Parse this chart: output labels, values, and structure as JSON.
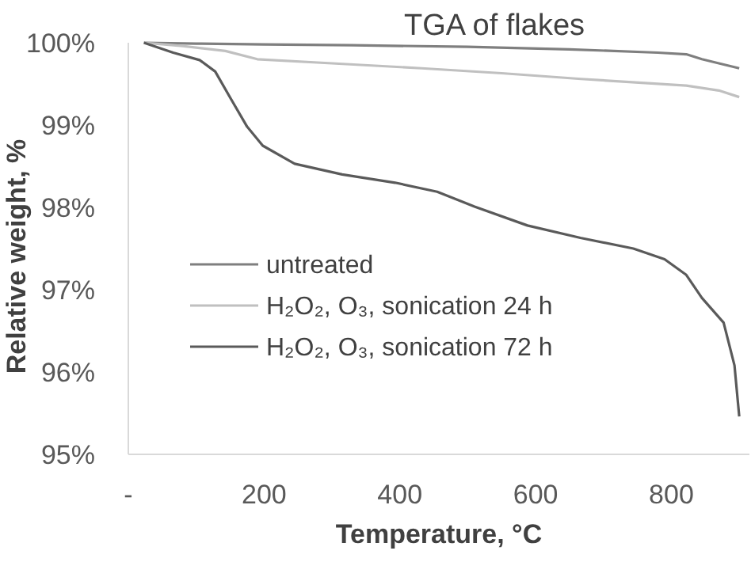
{
  "chart_data": {
    "type": "line",
    "title": "TGA of flakes",
    "xlabel": "Temperature, °C",
    "ylabel": "Relative weight, %",
    "xlim": [
      0,
      915
    ],
    "xticks": [
      {
        "value": 0,
        "label": "-"
      },
      200,
      400,
      600,
      800
    ],
    "ylim": [
      95,
      100
    ],
    "yticks": [
      {
        "value": 95,
        "label": "95%"
      },
      {
        "value": 96,
        "label": "96%"
      },
      {
        "value": 97,
        "label": "97%"
      },
      {
        "value": 98,
        "label": "98%"
      },
      {
        "value": 99,
        "label": "99%"
      },
      {
        "value": 100,
        "label": "100%"
      }
    ],
    "grid": false,
    "legend": "left",
    "marker": "none",
    "line_style": "solid",
    "series": [
      {
        "name": "untreated",
        "color": "#7f7f7f",
        "x": [
          23,
          100,
          200,
          330,
          500,
          650,
          780,
          822,
          845,
          870,
          900
        ],
        "values": [
          100,
          99.99,
          99.98,
          99.97,
          99.95,
          99.92,
          99.88,
          99.86,
          99.8,
          99.75,
          99.69
        ]
      },
      {
        "name": "H₂O₂, O₃, sonication 24 h",
        "color": "#c0c0c0",
        "x": [
          23,
          80,
          143,
          190,
          300,
          432,
          550,
          667,
          822,
          870,
          900
        ],
        "values": [
          100,
          99.96,
          99.9,
          99.8,
          99.75,
          99.69,
          99.63,
          99.56,
          99.48,
          99.42,
          99.34
        ]
      },
      {
        "name": "H₂O₂, O₃, sonication 72 h",
        "color": "#5a5a5a",
        "x": [
          23,
          66,
          105,
          128,
          151,
          175,
          198,
          245,
          315,
          393,
          455,
          510,
          588,
          666,
          744,
          790,
          822,
          845,
          877,
          893,
          900
        ],
        "values": [
          100,
          99.88,
          99.79,
          99.65,
          99.32,
          98.98,
          98.75,
          98.53,
          98.4,
          98.3,
          98.19,
          98.01,
          97.78,
          97.63,
          97.5,
          97.37,
          97.18,
          96.9,
          96.6,
          96.08,
          95.46
        ]
      }
    ]
  }
}
